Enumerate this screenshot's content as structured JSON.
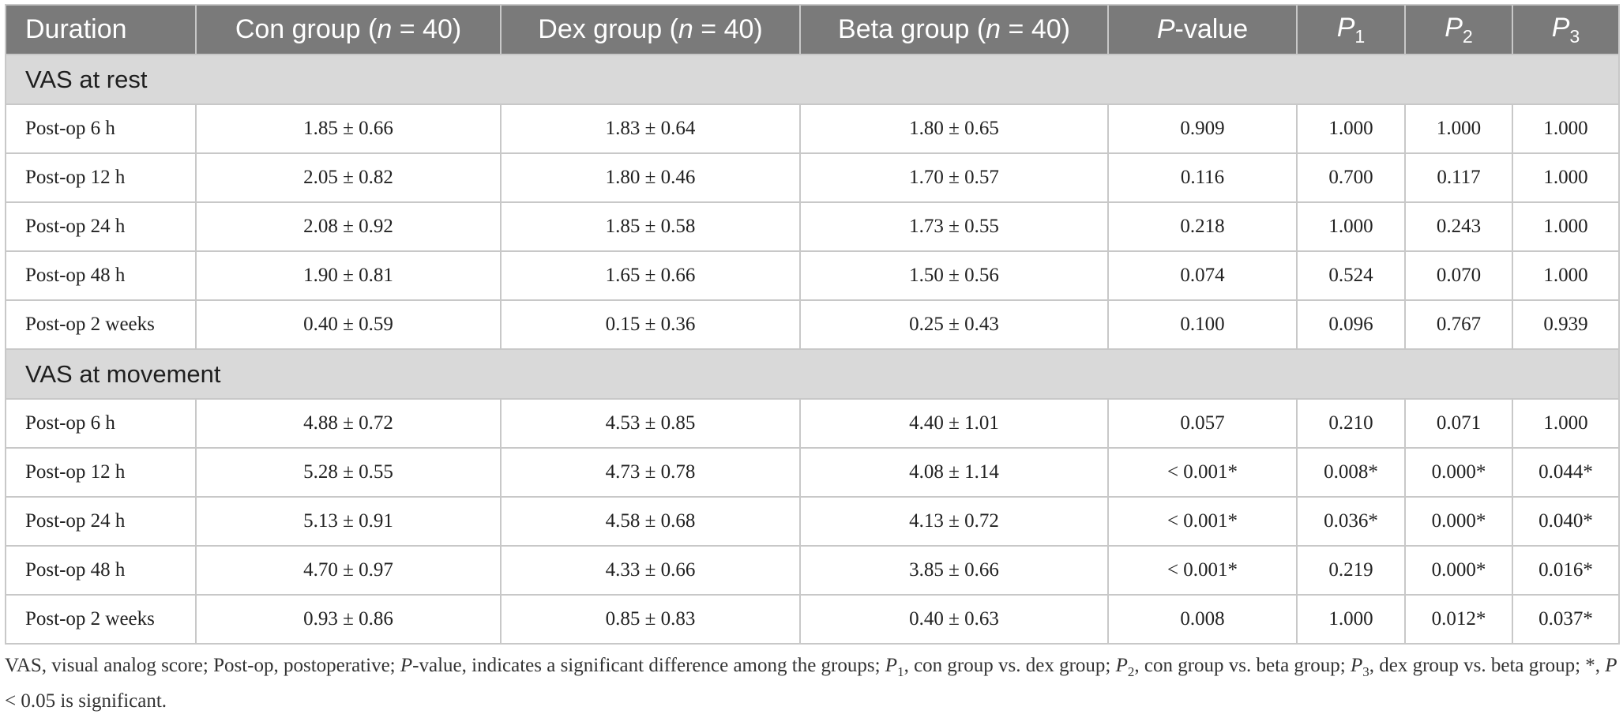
{
  "table": {
    "headers": {
      "duration": "Duration",
      "con": {
        "prefix": "Con group (",
        "n": "n",
        "suffix": " = 40)"
      },
      "dex": {
        "prefix": "Dex group (",
        "n": "n",
        "suffix": " = 40)"
      },
      "beta": {
        "prefix": "Beta group (",
        "n": "n",
        "suffix": " = 40)"
      },
      "pvalue": {
        "p": "P",
        "rest": "-value"
      },
      "p1": {
        "p": "P",
        "sub": "1"
      },
      "p2": {
        "p": "P",
        "sub": "2"
      },
      "p3": {
        "p": "P",
        "sub": "3"
      }
    },
    "sections": [
      {
        "title": "VAS at rest",
        "rows": [
          {
            "duration": "Post-op 6 h",
            "con": "1.85 ± 0.66",
            "dex": "1.83 ± 0.64",
            "beta": "1.80 ± 0.65",
            "p": "0.909",
            "p1": "1.000",
            "p2": "1.000",
            "p3": "1.000"
          },
          {
            "duration": "Post-op 12 h",
            "con": "2.05 ± 0.82",
            "dex": "1.80 ± 0.46",
            "beta": "1.70 ± 0.57",
            "p": "0.116",
            "p1": "0.700",
            "p2": "0.117",
            "p3": "1.000"
          },
          {
            "duration": "Post-op 24 h",
            "con": "2.08 ± 0.92",
            "dex": "1.85 ± 0.58",
            "beta": "1.73 ± 0.55",
            "p": "0.218",
            "p1": "1.000",
            "p2": "0.243",
            "p3": "1.000"
          },
          {
            "duration": "Post-op 48 h",
            "con": "1.90 ± 0.81",
            "dex": "1.65 ± 0.66",
            "beta": "1.50 ± 0.56",
            "p": "0.074",
            "p1": "0.524",
            "p2": "0.070",
            "p3": "1.000"
          },
          {
            "duration": "Post-op 2 weeks",
            "con": "0.40 ± 0.59",
            "dex": "0.15 ± 0.36",
            "beta": "0.25 ± 0.43",
            "p": "0.100",
            "p1": "0.096",
            "p2": "0.767",
            "p3": "0.939"
          }
        ]
      },
      {
        "title": "VAS at movement",
        "rows": [
          {
            "duration": "Post-op 6 h",
            "con": "4.88 ± 0.72",
            "dex": "4.53 ± 0.85",
            "beta": "4.40 ± 1.01",
            "p": "0.057",
            "p1": "0.210",
            "p2": "0.071",
            "p3": "1.000"
          },
          {
            "duration": "Post-op 12 h",
            "con": "5.28 ± 0.55",
            "dex": "4.73 ± 0.78",
            "beta": "4.08 ± 1.14",
            "p": "< 0.001*",
            "p1": "0.008*",
            "p2": "0.000*",
            "p3": "0.044*"
          },
          {
            "duration": "Post-op 24 h",
            "con": "5.13 ± 0.91",
            "dex": "4.58 ± 0.68",
            "beta": "4.13 ± 0.72",
            "p": "< 0.001*",
            "p1": "0.036*",
            "p2": "0.000*",
            "p3": "0.040*"
          },
          {
            "duration": "Post-op 48 h",
            "con": "4.70 ± 0.97",
            "dex": "4.33 ± 0.66",
            "beta": "3.85 ± 0.66",
            "p": "< 0.001*",
            "p1": "0.219",
            "p2": "0.000*",
            "p3": "0.016*"
          },
          {
            "duration": "Post-op 2 weeks",
            "con": "0.93 ± 0.86",
            "dex": "0.85 ± 0.83",
            "beta": "0.40 ± 0.63",
            "p": "0.008",
            "p1": "1.000",
            "p2": "0.012*",
            "p3": "0.037*"
          }
        ]
      }
    ]
  },
  "footnote": {
    "t1": "VAS, visual analog score; Post-op, postoperative; ",
    "p_a": "P",
    "t2": "-value, indicates a significant difference among the groups; ",
    "p_b": "P",
    "sub_b": "1",
    "t3": ", con group vs. dex group; ",
    "p_c": "P",
    "sub_c": "2",
    "t4": ", con group vs. beta group; ",
    "p_d": "P",
    "sub_d": "3",
    "t5": ", dex group vs. beta group; *, ",
    "p_e": "P",
    "t6": " < 0.05 is significant."
  },
  "colors": {
    "header_bg": "#7a7a7a",
    "header_text": "#ffffff",
    "section_bg": "#d9d9d9",
    "border": "#c8c8c8"
  }
}
